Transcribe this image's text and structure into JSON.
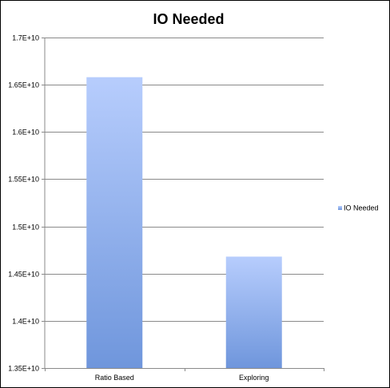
{
  "chart_data": {
    "type": "bar",
    "title": "IO Needed",
    "categories": [
      "Ratio Based",
      "Exploring"
    ],
    "series": [
      {
        "name": "IO Needed",
        "values": [
          16580000000,
          14680000000
        ]
      }
    ],
    "ylim": [
      13500000000,
      17000000000
    ],
    "yticks": [
      13500000000,
      14000000000,
      14500000000,
      15000000000,
      15500000000,
      16000000000,
      16500000000,
      17000000000
    ],
    "ytick_labels": [
      "1.35E+10",
      "1.4E+10",
      "1.45E+10",
      "1.5E+10",
      "1.55E+10",
      "1.6E+10",
      "1.65E+10",
      "1.7E+10"
    ],
    "grid": true,
    "legend_position": "right",
    "colors": {
      "bar_top": "#b7cdfd",
      "bar_bottom": "#6f96dc",
      "grid": "#8a8a8a",
      "axis": "#8a8a8a"
    }
  }
}
